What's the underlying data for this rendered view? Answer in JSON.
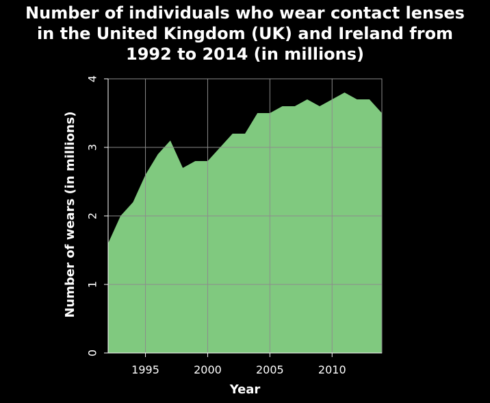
{
  "chart_data": {
    "type": "area",
    "title_lines": [
      "Number of individuals who wear contact lenses",
      "in the United Kingdom (UK) and Ireland from",
      "1992 to 2014 (in millions)"
    ],
    "xlabel": "Year",
    "ylabel": "Number of wears (in millions)",
    "xlim": [
      1992,
      2014
    ],
    "ylim": [
      0,
      4
    ],
    "x_ticks": [
      1995,
      2000,
      2005,
      2010
    ],
    "y_ticks": [
      0,
      1,
      2,
      3,
      4
    ],
    "grid": true,
    "fill_color": "#80c97f",
    "grid_color": "#8c8c8c",
    "x": [
      1992,
      1993,
      1994,
      1995,
      1996,
      1997,
      1998,
      1999,
      2000,
      2001,
      2002,
      2003,
      2004,
      2005,
      2006,
      2007,
      2008,
      2009,
      2010,
      2011,
      2012,
      2013,
      2014
    ],
    "values": [
      1.6,
      2.0,
      2.2,
      2.6,
      2.9,
      3.1,
      2.7,
      2.8,
      2.8,
      3.0,
      3.2,
      3.2,
      3.5,
      3.5,
      3.6,
      3.6,
      3.7,
      3.6,
      3.7,
      3.8,
      3.7,
      3.7,
      3.5
    ]
  }
}
